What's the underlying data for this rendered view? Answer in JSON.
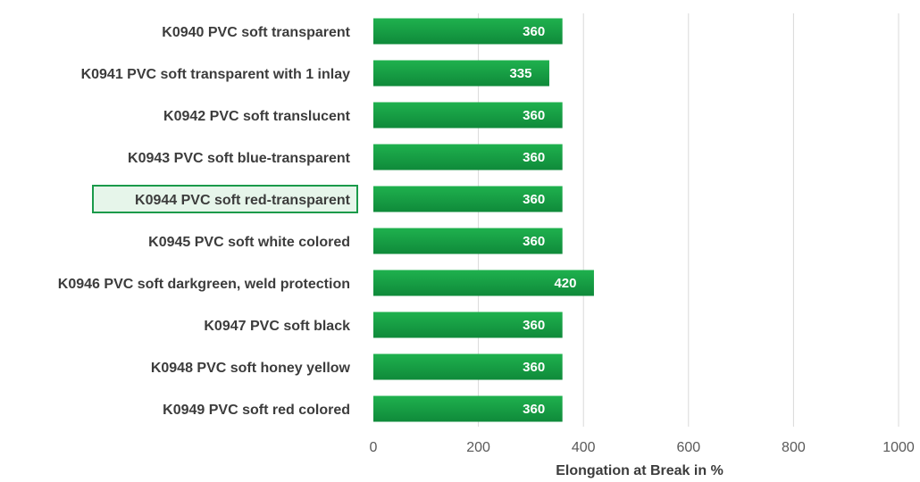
{
  "chart_data": {
    "type": "bar",
    "orientation": "horizontal",
    "categories": [
      "K0940 PVC soft transparent",
      "K0941 PVC soft transparent with 1 inlay",
      "K0942 PVC soft translucent",
      "K0943 PVC soft blue-transparent",
      "K0944 PVC soft red-transparent",
      "K0945 PVC soft white colored",
      "K0946 PVC soft darkgreen, weld protection",
      "K0947 PVC soft black",
      "K0948 PVC soft honey yellow",
      "K0949 PVC soft red colored"
    ],
    "values": [
      360,
      335,
      360,
      360,
      360,
      360,
      420,
      360,
      360,
      360
    ],
    "data_labels": [
      "360",
      "335",
      "360",
      "360",
      "360",
      "360",
      "420",
      "360",
      "360",
      "360"
    ],
    "highlighted_category": "K0944 PVC soft red-transparent",
    "xlabel": "Elongation at Break in %",
    "xlim": [
      0,
      1000
    ],
    "xticks": [
      "0",
      "200",
      "400",
      "600",
      "800",
      "1000"
    ],
    "grid": true,
    "colors": {
      "bar_light": "#1fb14e",
      "bar_dark": "#0f8a3a",
      "highlight_border": "#1a9a4a",
      "highlight_fill": "#e6f5ea"
    }
  }
}
